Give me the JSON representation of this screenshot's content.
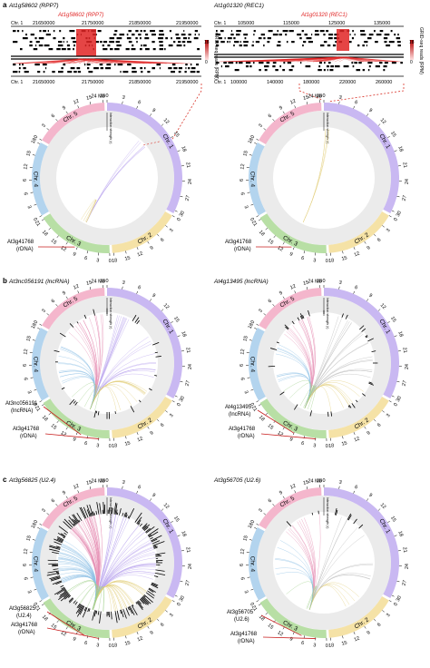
{
  "panels": [
    {
      "letter": "a",
      "left_title": "At1g58602 (RPP7)",
      "right_title": "At1g01320 (REC1)",
      "left_zoom": {
        "gene_label": "At1g58602 (RPP7)",
        "top_ticks": [
          "21650000",
          "21750000",
          "21850000",
          "21950000"
        ],
        "bottom_ticks": [
          "21650000",
          "21750000",
          "21850000",
          "21950000"
        ],
        "chr_label": "Chr. 1"
      },
      "right_zoom": {
        "gene_label": "At1g01320 (REC1)",
        "top_ticks": [
          "105000",
          "115000",
          "125000",
          "135000"
        ],
        "bottom_ticks": [
          "100000",
          "140000",
          "180000",
          "220000",
          "260000"
        ],
        "chr_label": "Chr. 1"
      },
      "scale_label": "GRID-seq reads (RPM)",
      "scale_max": "18",
      "scale_min": "0",
      "left_anchor": "At3g41768",
      "left_anchor_sub": "(rDNA)",
      "right_anchor": "At3g41768",
      "right_anchor_sub": "(rDNA)"
    },
    {
      "letter": "b",
      "left_title": "At3nc056191 (lncRNA)",
      "right_title": "At4g13495 (lncRNA)",
      "left_anchor": "At3nc056191",
      "left_anchor_sub": "(lncRNA)",
      "left_anchor2": "At3g41768",
      "left_anchor2_sub": "(rDNA)",
      "right_anchor": "At4g13495",
      "right_anchor_sub": "(lncRNA)",
      "right_anchor2": "At3g41768",
      "right_anchor2_sub": "(rDNA)"
    },
    {
      "letter": "c",
      "left_title": "At3g56825 (U2.4)",
      "right_title": "At3g56705 (U2.6)",
      "left_anchor": "At3g56825",
      "left_anchor_sub": "(U2.4)",
      "left_anchor2": "At3g41768",
      "left_anchor2_sub": "(rDNA)",
      "right_anchor": "At3g56705",
      "right_anchor_sub": "(U2.6)",
      "right_anchor2": "At3g41768",
      "right_anchor2_sub": "(rDNA)"
    }
  ],
  "circos": {
    "chromosomes": [
      {
        "name": "Chr. 1",
        "color": "#c9b8f2"
      },
      {
        "name": "Chr. 2",
        "color": "#f5e2a6"
      },
      {
        "name": "Chr. 3",
        "color": "#b8dfa5"
      },
      {
        "name": "Chr. 4",
        "color": "#b3d4ee"
      },
      {
        "name": "Chr. 5",
        "color": "#f4b6cc"
      }
    ],
    "mb_unit": "Mb",
    "tick_values_chr1": [
      "0",
      "3",
      "6",
      "9",
      "12",
      "15",
      "18",
      "21",
      "24",
      "27",
      "30"
    ],
    "axis_label": "Interaction strength (r)"
  },
  "colors": {
    "link_red": "#e02424",
    "dashed": "#d9342a",
    "ring_bg": "#ebebeb"
  }
}
